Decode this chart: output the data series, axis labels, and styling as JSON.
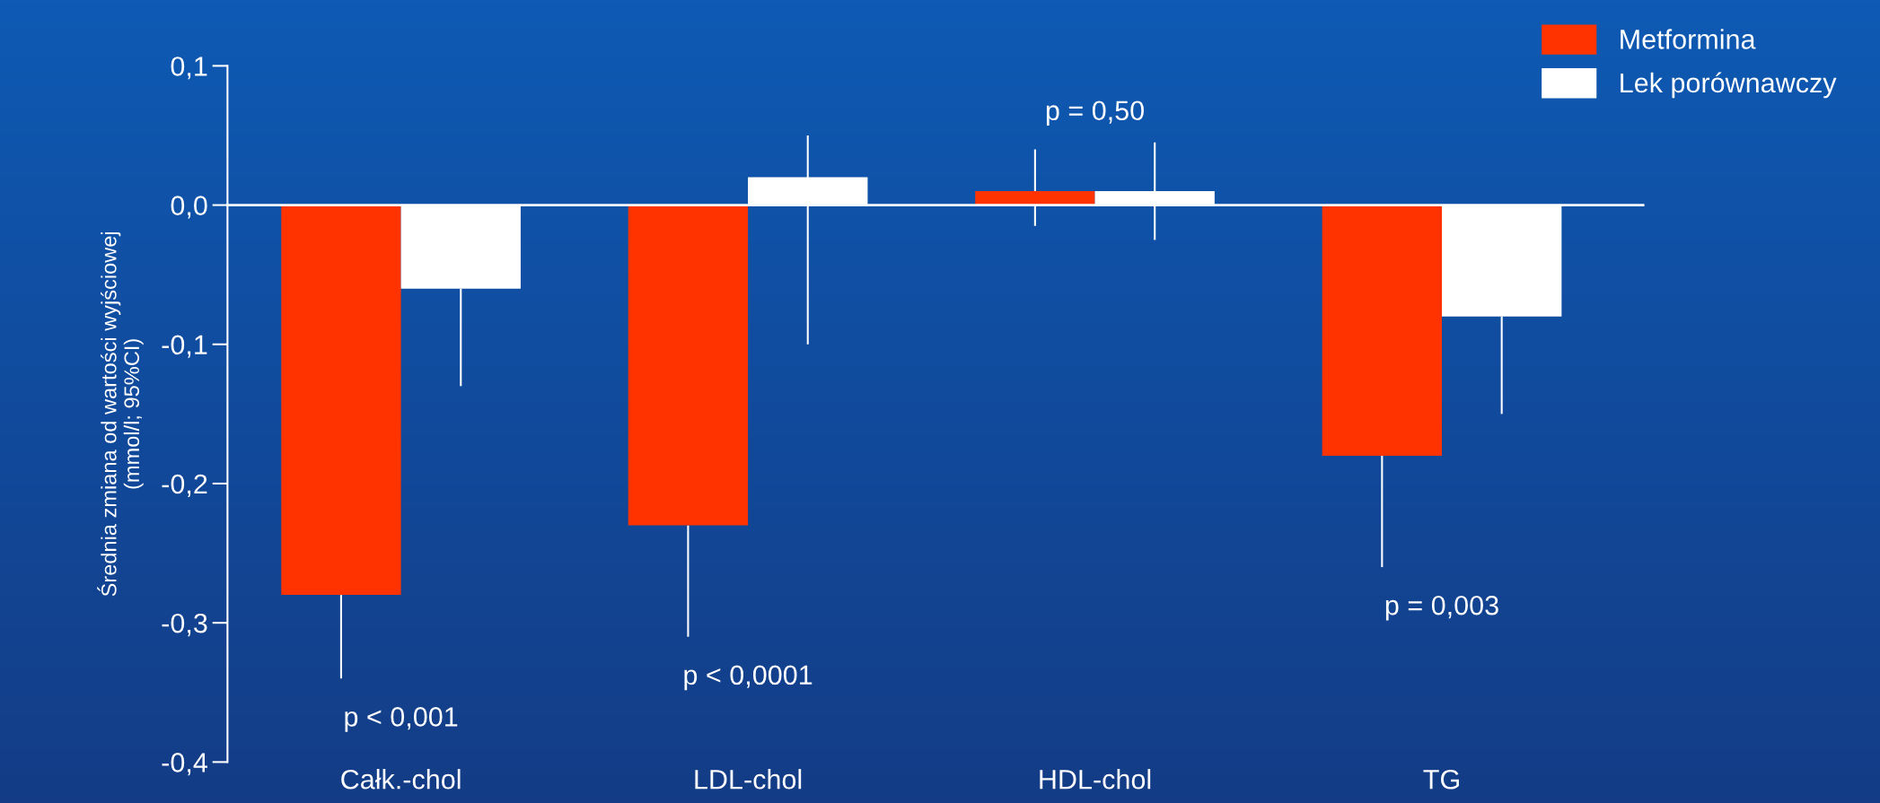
{
  "chart_data": {
    "type": "bar",
    "ylabel": "Średnia zmiana od wartości wyjściowej\n(mmol/l; 95%CI)",
    "categories": [
      "Całk.-chol",
      "LDL-chol",
      "HDL-chol",
      "TG"
    ],
    "series": [
      {
        "name": "Metformina",
        "color": "#ff3300",
        "values": [
          -0.28,
          -0.23,
          0.01,
          -0.18
        ],
        "errors": [
          [
            -0.34,
            -0.28
          ],
          [
            -0.31,
            -0.23
          ],
          [
            -0.015,
            0.04
          ],
          [
            -0.26,
            -0.18
          ]
        ]
      },
      {
        "name": "Lek porównawczy",
        "color": "#ffffff",
        "values": [
          -0.06,
          0.02,
          0.01,
          -0.08
        ],
        "errors": [
          [
            -0.13,
            -0.06
          ],
          [
            -0.1,
            0.05
          ],
          [
            -0.025,
            0.045
          ],
          [
            -0.15,
            -0.08
          ]
        ]
      }
    ],
    "ylim": [
      -0.4,
      0.1
    ],
    "yticks": [
      {
        "value": -0.4,
        "label": "-0,4"
      },
      {
        "value": -0.3,
        "label": "-0,3"
      },
      {
        "value": -0.2,
        "label": "-0,2"
      },
      {
        "value": -0.1,
        "label": "-0,1"
      },
      {
        "value": 0,
        "label": "0,0"
      },
      {
        "value": 0.1,
        "label": "0,1"
      }
    ],
    "annotations": [
      "p < 0,001",
      "p < 0,0001",
      "p = 0,50",
      "p = 0,003"
    ],
    "legend": "top right"
  }
}
